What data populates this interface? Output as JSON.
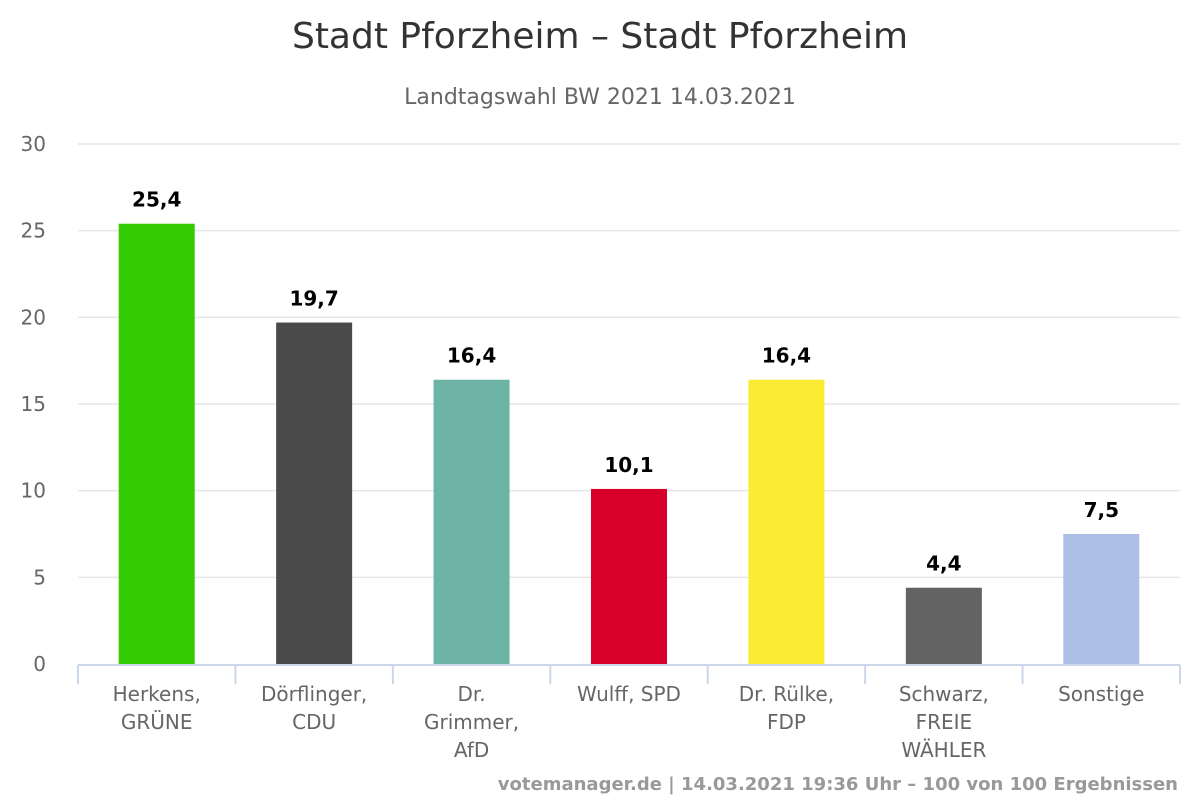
{
  "chart_data": {
    "type": "bar",
    "title": "Stadt Pforzheim – Stadt Pforzheim",
    "subtitle": "Landtagswahl BW 2021 14.03.2021",
    "xlabel": "",
    "ylabel": "",
    "ylim": [
      0,
      30
    ],
    "yticks": [
      "0",
      "5",
      "10",
      "15",
      "20",
      "25",
      "30"
    ],
    "grid": true,
    "legend": "none",
    "categories": [
      [
        "Herkens,",
        "GRÜNE"
      ],
      [
        "Dörflinger,",
        "CDU"
      ],
      [
        "Dr.",
        "Grimmer,",
        "AfD"
      ],
      [
        "Wulff, SPD"
      ],
      [
        "Dr. Rülke,",
        "FDP"
      ],
      [
        "Schwarz,",
        "FREIE",
        "WÄHLER"
      ],
      [
        "Sonstige"
      ]
    ],
    "values": [
      25.4,
      19.7,
      16.4,
      10.1,
      16.4,
      4.4,
      7.5
    ],
    "data_labels": [
      "25,4",
      "19,7",
      "16,4",
      "10,1",
      "16,4",
      "4,4",
      "7,5"
    ],
    "colors": [
      "#33cc00",
      "#4a4a4a",
      "#6db3a6",
      "#d6002a",
      "#f9ec33",
      "#636363",
      "#adbfe6"
    ]
  },
  "credits": "votemanager.de | 14.03.2021 19:36 Uhr – 100 von 100 Ergebnissen"
}
